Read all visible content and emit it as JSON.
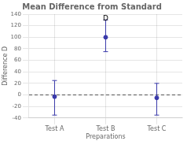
{
  "chart_data": {
    "type": "errorbar",
    "title": "Mean Difference from Standard",
    "x_label": "Preparations",
    "y_label": "Difference D",
    "categories": [
      "Test A",
      "Test B",
      "Test C"
    ],
    "values": [
      -3,
      100,
      -5
    ],
    "error_lower": [
      32,
      25,
      30
    ],
    "error_upper": [
      28,
      30,
      25
    ],
    "color": "#3a3aaa",
    "hline": 0,
    "annotations": [
      {
        "text": "D",
        "x": "Test B",
        "y": 138
      }
    ],
    "ylim": [
      -40,
      140
    ],
    "yticks": [
      -40,
      -20,
      0,
      20,
      40,
      60,
      80,
      100,
      120,
      140
    ],
    "grid": true
  }
}
